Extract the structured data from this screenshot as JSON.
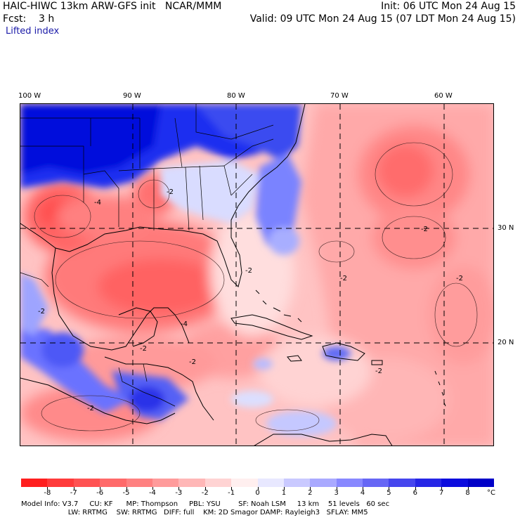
{
  "header": {
    "left_line1": "HAIC-HIWC 13km ARW-GFS init   NCAR/MMM",
    "left_line2": "Fcst:    3 h",
    "field_name": "Lifted index",
    "right_line1": "Init: 06 UTC Mon 24 Aug 15",
    "right_line2": "Valid: 09 UTC Mon 24 Aug 15 (07 LDT Mon 24 Aug 15)"
  },
  "map": {
    "lon_labels": [
      "100 W",
      "90 W",
      "80 W",
      "70 W",
      "60 W"
    ],
    "lat_labels": [
      "30 N",
      "20 N"
    ],
    "contour_labels": [
      "-2",
      "-4",
      "-2",
      "-2",
      "-2",
      "-4",
      "-2",
      "-2",
      "-2",
      "-2",
      "-2",
      "-2"
    ]
  },
  "colorbar": {
    "labels": [
      "-8",
      "-7",
      "-6",
      "-5",
      "-4",
      "-3",
      "-2",
      "-1",
      "0",
      "1",
      "2",
      "3",
      "4",
      "5",
      "6",
      "7",
      "8"
    ],
    "unit": "°C",
    "colors": [
      "#ff1f1f",
      "#ff3b3b",
      "#ff5252",
      "#ff6a6a",
      "#ff8181",
      "#ff9b9b",
      "#ffb7b7",
      "#ffd3d3",
      "#ffefef",
      "#e8e8ff",
      "#c9c9ff",
      "#a9a9ff",
      "#8888ff",
      "#6767f5",
      "#4646ee",
      "#2626e6",
      "#0c0cde",
      "#0000c8"
    ]
  },
  "footer": {
    "line1": "Model Info: V3.7     CU: KF      MP: Thompson     PBL: YSU        SF: Noah LSM     13 km    51 levels   60 sec",
    "line2": "                     LW: RRTMG    SW: RRTMG   DIFF: full    KM: 2D Smagor DAMP: Rayleigh3   SFLAY: MM5"
  }
}
